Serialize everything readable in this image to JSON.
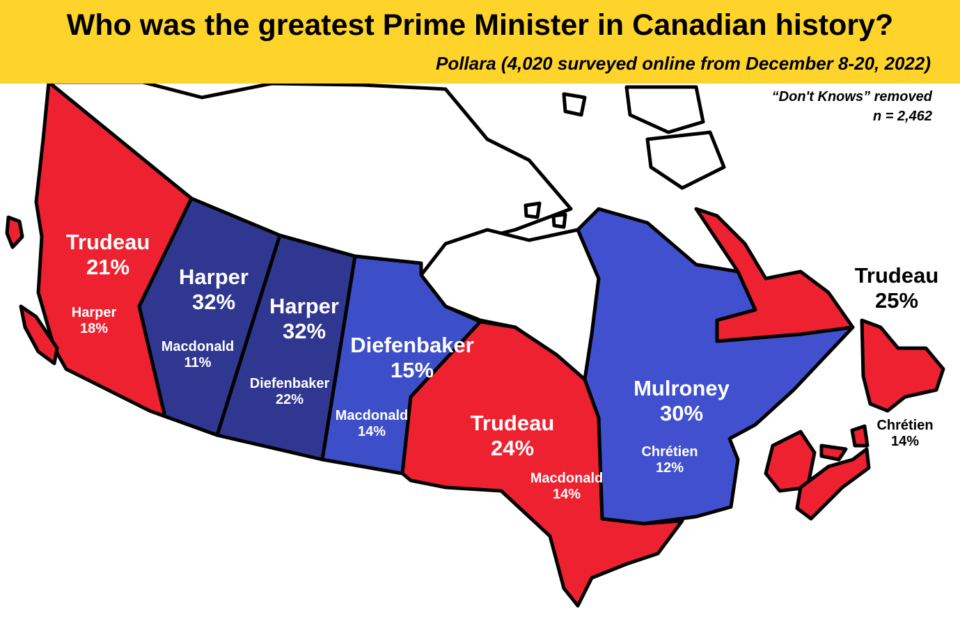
{
  "title": "Who was the greatest Prime Minister in Canadian history?",
  "subtitle": "Pollara (4,020 surveyed online from December 8-20, 2022)",
  "note_1": "“Don't Knows” removed",
  "note_2": "n = 2,462",
  "colors": {
    "banner": "#ffd42a",
    "trudeau": "#ee2130",
    "harper": "#2f3791",
    "diefenbaker": "#3d4ec9",
    "mulroney": "#4150cf",
    "outline": "#000000",
    "territory": "#ffffff"
  },
  "regions": [
    {
      "id": "bc",
      "leader": "Trudeau",
      "leader_pct": "21%",
      "second": "Harper",
      "second_pct": "18%"
    },
    {
      "id": "ab",
      "leader": "Harper",
      "leader_pct": "32%",
      "second": "Macdonald",
      "second_pct": "11%"
    },
    {
      "id": "sk",
      "leader": "Harper",
      "leader_pct": "32%",
      "second": "Diefenbaker",
      "second_pct": "22%"
    },
    {
      "id": "mb",
      "leader": "Diefenbaker",
      "leader_pct": "15%",
      "second": "Macdonald",
      "second_pct": "14%"
    },
    {
      "id": "on",
      "leader": "Trudeau",
      "leader_pct": "24%",
      "second": "Macdonald",
      "second_pct": "14%"
    },
    {
      "id": "qc",
      "leader": "Mulroney",
      "leader_pct": "30%",
      "second": "Chrétien",
      "second_pct": "12%"
    },
    {
      "id": "atl",
      "leader": "Trudeau",
      "leader_pct": "25%",
      "second": "Chrétien",
      "second_pct": "14%"
    }
  ]
}
